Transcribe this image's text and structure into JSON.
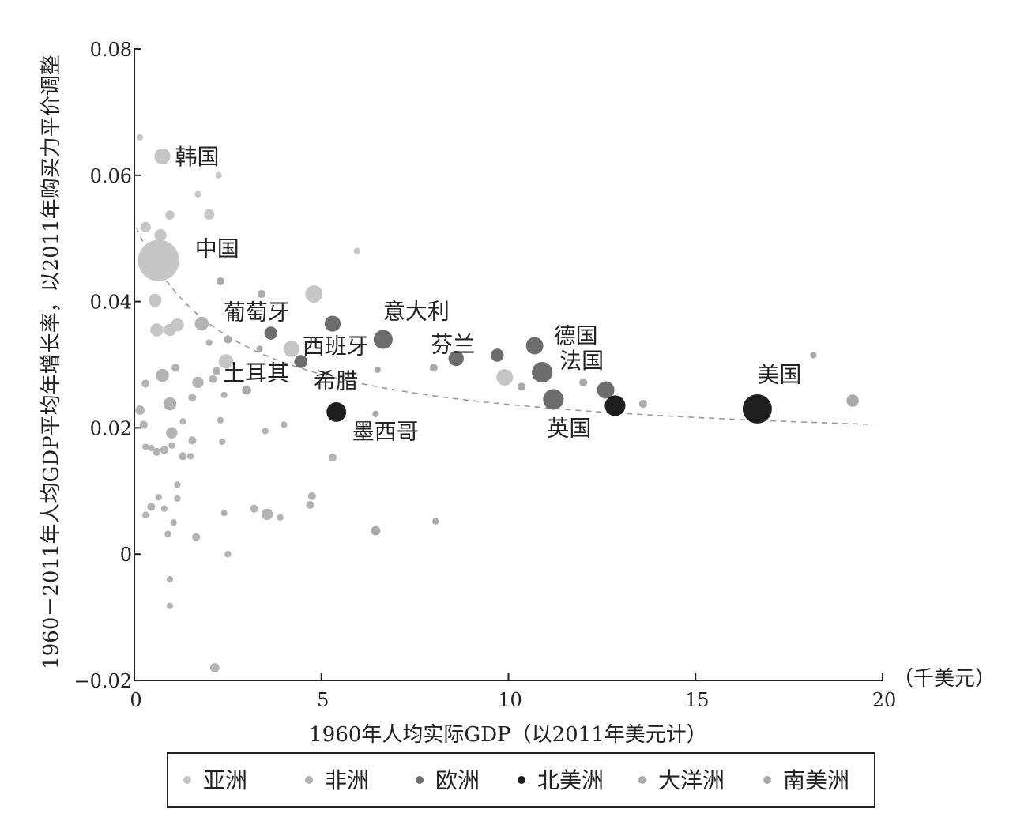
{
  "chart_data": {
    "type": "scatter",
    "title": "",
    "xlabel": "1960年人均实际GDP（以2011年美元计）",
    "ylabel": "1960－2011年人均GDP平均年增长率，以2011年购买力平价调整",
    "x_unit": "（千美元）",
    "xlim": [
      0,
      20
    ],
    "ylim": [
      -0.02,
      0.08
    ],
    "xticks": [
      0,
      5,
      10,
      15,
      20
    ],
    "xtick_labels": [
      "0",
      "5",
      "10",
      "15",
      "20"
    ],
    "yticks": [
      -0.02,
      0,
      0.02,
      0.04,
      0.06,
      0.08
    ],
    "ytick_labels": [
      "−0.02",
      "0",
      "0.02",
      "0.04",
      "0.06",
      "0.08"
    ],
    "grid": false,
    "legend_position": "bottom",
    "legend": [
      {
        "key": "asia",
        "name": "亚洲"
      },
      {
        "key": "africa",
        "name": "非洲"
      },
      {
        "key": "europe",
        "name": "欧洲"
      },
      {
        "key": "north_america",
        "name": "北美洲"
      },
      {
        "key": "oceania",
        "name": "大洋洲"
      },
      {
        "key": "south_america",
        "name": "南美洲"
      }
    ],
    "colors": {
      "asia": "#c6c6c6",
      "africa": "#b3b3b3",
      "europe": "#6d6d6d",
      "north_america": "#1e1e1e",
      "oceania": "#ababab",
      "south_america": "#aaaaaa",
      "trend": "#9a9a9a",
      "axis": "#222222"
    },
    "trend_line": {
      "style": "dashed",
      "form": "a/(b+x)+c",
      "a": 0.09,
      "b": 2.5,
      "c": 0.0165
    },
    "labeled_points": [
      {
        "label": "韩国",
        "x": 0.75,
        "y": 0.063,
        "size": 1.2,
        "group": "asia",
        "label_dx": 16,
        "label_dy": 10
      },
      {
        "label": "中国",
        "x": 0.65,
        "y": 0.0465,
        "size": 8.0,
        "group": "asia",
        "label_dx": 46,
        "label_dy": -5
      },
      {
        "label": "葡萄牙",
        "x": 3.65,
        "y": 0.035,
        "size": 0.8,
        "group": "europe",
        "label_dx": -60,
        "label_dy": -17
      },
      {
        "label": "西班牙",
        "x": 4.45,
        "y": 0.0305,
        "size": 0.8,
        "group": "europe",
        "label_dx": 2,
        "label_dy": -10
      },
      {
        "label": "土耳其",
        "x": 2.45,
        "y": 0.0305,
        "size": 1.0,
        "group": "asia",
        "label_dx": -4,
        "label_dy": 24
      },
      {
        "label": "希腊",
        "x": 5.3,
        "y": 0.0365,
        "size": 1.2,
        "group": "europe",
        "label_dx": -24,
        "label_dy": 82
      },
      {
        "label": "意大利",
        "x": 6.65,
        "y": 0.034,
        "size": 1.7,
        "group": "europe",
        "label_dx": 0,
        "label_dy": -26
      },
      {
        "label": "墨西哥",
        "x": 5.4,
        "y": 0.0225,
        "size": 1.8,
        "group": "north_america",
        "label_dx": 20,
        "label_dy": 34
      },
      {
        "label": "芬兰",
        "x": 8.6,
        "y": 0.031,
        "size": 1.1,
        "group": "europe",
        "label_dx": -32,
        "label_dy": -8
      },
      {
        "label": "德国",
        "x": 10.7,
        "y": 0.033,
        "size": 1.4,
        "group": "europe",
        "label_dx": 24,
        "label_dy": -3
      },
      {
        "label": "法国",
        "x": 10.9,
        "y": 0.0288,
        "size": 2.0,
        "group": "europe",
        "label_dx": 22,
        "label_dy": -5
      },
      {
        "label": "英国",
        "x": 11.2,
        "y": 0.0245,
        "size": 2.0,
        "group": "europe",
        "label_dx": -8,
        "label_dy": 46
      },
      {
        "label": "美国",
        "x": 16.65,
        "y": 0.023,
        "size": 4.0,
        "group": "north_america",
        "label_dx": 0,
        "label_dy": -34
      }
    ],
    "other_points": [
      {
        "x": 12.6,
        "y": 0.026,
        "size": 1.4,
        "group": "europe"
      },
      {
        "x": 12.85,
        "y": 0.0235,
        "size": 2.0,
        "group": "north_america"
      },
      {
        "x": 9.7,
        "y": 0.0315,
        "size": 0.8,
        "group": "europe"
      },
      {
        "x": 9.9,
        "y": 0.028,
        "size": 1.3,
        "group": "asia"
      },
      {
        "x": 4.2,
        "y": 0.0325,
        "size": 1.2,
        "group": "asia"
      },
      {
        "x": 4.8,
        "y": 0.0412,
        "size": 1.4,
        "group": "asia"
      },
      {
        "x": 1.8,
        "y": 0.0365,
        "size": 0.9,
        "group": "africa"
      },
      {
        "x": 0.55,
        "y": 0.0402,
        "size": 0.8,
        "group": "asia"
      },
      {
        "x": 1.15,
        "y": 0.0363,
        "size": 0.8,
        "group": "asia"
      },
      {
        "x": 0.6,
        "y": 0.0355,
        "size": 0.8,
        "group": "asia"
      },
      {
        "x": 0.95,
        "y": 0.0355,
        "size": 0.7,
        "group": "asia"
      },
      {
        "x": 0.75,
        "y": 0.0283,
        "size": 0.8,
        "group": "africa"
      },
      {
        "x": 0.95,
        "y": 0.0238,
        "size": 0.8,
        "group": "africa"
      },
      {
        "x": 1.0,
        "y": 0.0192,
        "size": 0.6,
        "group": "africa"
      },
      {
        "x": 1.7,
        "y": 0.0272,
        "size": 0.6,
        "group": "africa"
      },
      {
        "x": 0.7,
        "y": 0.0505,
        "size": 0.7,
        "group": "asia"
      },
      {
        "x": 2.0,
        "y": 0.0538,
        "size": 0.5,
        "group": "asia"
      },
      {
        "x": 0.95,
        "y": 0.0537,
        "size": 0.4,
        "group": "asia"
      },
      {
        "x": 0.3,
        "y": 0.0518,
        "size": 0.5,
        "group": "asia"
      },
      {
        "x": 19.2,
        "y": 0.0243,
        "size": 0.7,
        "group": "oceania"
      },
      {
        "x": 3.55,
        "y": 0.0063,
        "size": 0.6,
        "group": "africa"
      },
      {
        "x": 6.45,
        "y": 0.0037,
        "size": 0.4,
        "group": "south_america"
      },
      {
        "x": 2.15,
        "y": -0.018,
        "size": 0.4,
        "group": "africa"
      },
      {
        "x": 3.0,
        "y": 0.026,
        "size": 0.4,
        "group": "south_america"
      },
      {
        "x": 0.15,
        "y": 0.066,
        "size": 0.2,
        "group": "asia"
      },
      {
        "x": 5.95,
        "y": 0.048,
        "size": 0.2,
        "group": "asia"
      },
      {
        "x": 2.25,
        "y": 0.06,
        "size": 0.2,
        "group": "asia"
      },
      {
        "x": 1.7,
        "y": 0.057,
        "size": 0.2,
        "group": "asia"
      },
      {
        "x": 2.3,
        "y": 0.0432,
        "size": 0.3,
        "group": "south_america"
      },
      {
        "x": 2.5,
        "y": 0.034,
        "size": 0.3,
        "group": "south_america"
      },
      {
        "x": 3.4,
        "y": 0.0412,
        "size": 0.3,
        "group": "south_america"
      },
      {
        "x": 3.35,
        "y": 0.0325,
        "size": 0.2,
        "group": "south_america"
      },
      {
        "x": 2.2,
        "y": 0.029,
        "size": 0.3,
        "group": "africa"
      },
      {
        "x": 2.1,
        "y": 0.0277,
        "size": 0.3,
        "group": "africa"
      },
      {
        "x": 2.0,
        "y": 0.0335,
        "size": 0.2,
        "group": "africa"
      },
      {
        "x": 2.4,
        "y": 0.0252,
        "size": 0.2,
        "group": "africa"
      },
      {
        "x": 2.3,
        "y": 0.0212,
        "size": 0.2,
        "group": "africa"
      },
      {
        "x": 2.4,
        "y": 0.0065,
        "size": 0.2,
        "group": "africa"
      },
      {
        "x": 2.5,
        "y": 0.0,
        "size": 0.2,
        "group": "africa"
      },
      {
        "x": 1.55,
        "y": 0.0248,
        "size": 0.3,
        "group": "africa"
      },
      {
        "x": 1.3,
        "y": 0.021,
        "size": 0.2,
        "group": "africa"
      },
      {
        "x": 1.55,
        "y": 0.018,
        "size": 0.3,
        "group": "africa"
      },
      {
        "x": 1.3,
        "y": 0.0155,
        "size": 0.3,
        "group": "africa"
      },
      {
        "x": 1.1,
        "y": 0.0295,
        "size": 0.3,
        "group": "africa"
      },
      {
        "x": 0.3,
        "y": 0.027,
        "size": 0.3,
        "group": "africa"
      },
      {
        "x": 0.15,
        "y": 0.0228,
        "size": 0.4,
        "group": "africa"
      },
      {
        "x": 0.25,
        "y": 0.0205,
        "size": 0.3,
        "group": "africa"
      },
      {
        "x": 0.3,
        "y": 0.017,
        "size": 0.2,
        "group": "africa"
      },
      {
        "x": 0.45,
        "y": 0.0168,
        "size": 0.2,
        "group": "africa"
      },
      {
        "x": 0.6,
        "y": 0.0162,
        "size": 0.3,
        "group": "africa"
      },
      {
        "x": 0.8,
        "y": 0.0165,
        "size": 0.3,
        "group": "africa"
      },
      {
        "x": 1.0,
        "y": 0.0172,
        "size": 0.2,
        "group": "africa"
      },
      {
        "x": 1.5,
        "y": 0.0155,
        "size": 0.2,
        "group": "africa"
      },
      {
        "x": 1.15,
        "y": 0.011,
        "size": 0.2,
        "group": "africa"
      },
      {
        "x": 0.65,
        "y": 0.009,
        "size": 0.2,
        "group": "africa"
      },
      {
        "x": 1.15,
        "y": 0.0088,
        "size": 0.2,
        "group": "africa"
      },
      {
        "x": 0.45,
        "y": 0.0075,
        "size": 0.3,
        "group": "africa"
      },
      {
        "x": 0.8,
        "y": 0.0072,
        "size": 0.2,
        "group": "africa"
      },
      {
        "x": 0.3,
        "y": 0.0062,
        "size": 0.2,
        "group": "africa"
      },
      {
        "x": 1.05,
        "y": 0.005,
        "size": 0.2,
        "group": "africa"
      },
      {
        "x": 0.9,
        "y": 0.0032,
        "size": 0.2,
        "group": "africa"
      },
      {
        "x": 1.65,
        "y": 0.0027,
        "size": 0.3,
        "group": "africa"
      },
      {
        "x": 0.95,
        "y": -0.004,
        "size": 0.2,
        "group": "africa"
      },
      {
        "x": 0.95,
        "y": -0.0082,
        "size": 0.2,
        "group": "africa"
      },
      {
        "x": 3.2,
        "y": 0.0072,
        "size": 0.3,
        "group": "africa"
      },
      {
        "x": 3.9,
        "y": 0.0058,
        "size": 0.2,
        "group": "africa"
      },
      {
        "x": 4.75,
        "y": 0.0092,
        "size": 0.3,
        "group": "africa"
      },
      {
        "x": 4.7,
        "y": 0.0078,
        "size": 0.3,
        "group": "africa"
      },
      {
        "x": 5.3,
        "y": 0.0153,
        "size": 0.3,
        "group": "africa"
      },
      {
        "x": 3.5,
        "y": 0.0195,
        "size": 0.2,
        "group": "africa"
      },
      {
        "x": 4.0,
        "y": 0.0205,
        "size": 0.2,
        "group": "africa"
      },
      {
        "x": 2.35,
        "y": 0.0178,
        "size": 0.2,
        "group": "africa"
      },
      {
        "x": 6.45,
        "y": 0.0222,
        "size": 0.2,
        "group": "south_america"
      },
      {
        "x": 6.5,
        "y": 0.0292,
        "size": 0.2,
        "group": "south_america"
      },
      {
        "x": 8.0,
        "y": 0.0295,
        "size": 0.3,
        "group": "south_america"
      },
      {
        "x": 8.05,
        "y": 0.0052,
        "size": 0.2,
        "group": "south_america"
      },
      {
        "x": 10.35,
        "y": 0.0265,
        "size": 0.3,
        "group": "south_america"
      },
      {
        "x": 12.0,
        "y": 0.0272,
        "size": 0.3,
        "group": "south_america"
      },
      {
        "x": 13.6,
        "y": 0.0238,
        "size": 0.3,
        "group": "south_america"
      },
      {
        "x": 18.15,
        "y": 0.0315,
        "size": 0.2,
        "group": "oceania"
      }
    ]
  }
}
